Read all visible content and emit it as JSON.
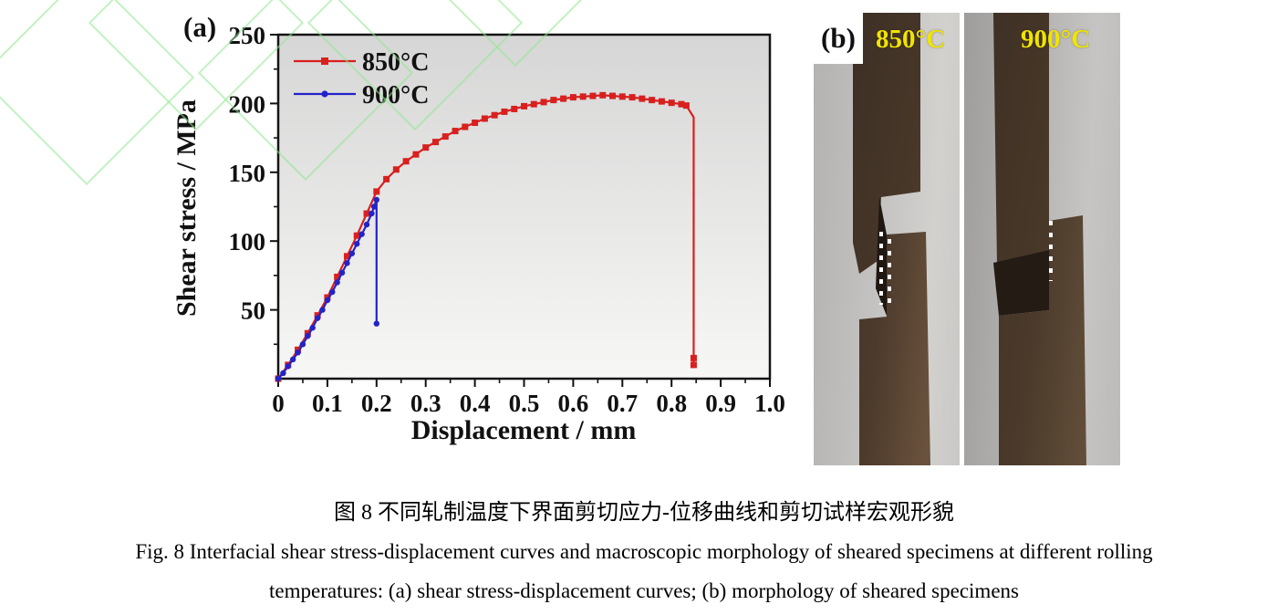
{
  "figure": {
    "panel_a_label": "(a)",
    "panel_b_label": "(b)"
  },
  "chart_data": {
    "type": "line",
    "title": "",
    "xlabel": "Displacement / mm",
    "ylabel": "Shear stress / MPa",
    "xlim": [
      0,
      1.0
    ],
    "ylim": [
      0,
      250
    ],
    "xtick_values": [
      0,
      0.1,
      0.2,
      0.3,
      0.4,
      0.5,
      0.6,
      0.7,
      0.8,
      0.9,
      1.0
    ],
    "xtick_labels": [
      "0",
      "0.1",
      "0.2",
      "0.3",
      "0.4",
      "0.5",
      "0.6",
      "0.7",
      "0.8",
      "0.9",
      "1.0"
    ],
    "ytick_values": [
      50,
      100,
      150,
      200,
      250
    ],
    "ytick_labels": [
      "50",
      "100",
      "150",
      "200",
      "250"
    ],
    "x_minor_step": 0.05,
    "y_minor_step": 25,
    "grid": false,
    "legend_position": "top-left",
    "series": [
      {
        "name": "850°C",
        "color": "#d8201e",
        "marker": "square",
        "points": [
          [
            0.0,
            0
          ],
          [
            0.02,
            10
          ],
          [
            0.04,
            21
          ],
          [
            0.06,
            33
          ],
          [
            0.08,
            46
          ],
          [
            0.1,
            59
          ],
          [
            0.12,
            74
          ],
          [
            0.14,
            89
          ],
          [
            0.16,
            104
          ],
          [
            0.18,
            120
          ],
          [
            0.2,
            136
          ],
          [
            0.22,
            145
          ],
          [
            0.24,
            152
          ],
          [
            0.26,
            158
          ],
          [
            0.28,
            163
          ],
          [
            0.3,
            168
          ],
          [
            0.32,
            172
          ],
          [
            0.34,
            176
          ],
          [
            0.36,
            180
          ],
          [
            0.38,
            183
          ],
          [
            0.4,
            186
          ],
          [
            0.42,
            189
          ],
          [
            0.44,
            191.5
          ],
          [
            0.46,
            194
          ],
          [
            0.48,
            196
          ],
          [
            0.5,
            198
          ],
          [
            0.52,
            199.5
          ],
          [
            0.54,
            201
          ],
          [
            0.56,
            202.5
          ],
          [
            0.58,
            203.5
          ],
          [
            0.6,
            204.5
          ],
          [
            0.62,
            205
          ],
          [
            0.64,
            205.5
          ],
          [
            0.66,
            206
          ],
          [
            0.68,
            205.5
          ],
          [
            0.7,
            205
          ],
          [
            0.72,
            204.5
          ],
          [
            0.74,
            203.5
          ],
          [
            0.76,
            202.5
          ],
          [
            0.78,
            201.5
          ],
          [
            0.8,
            200.5
          ],
          [
            0.82,
            199.5
          ],
          [
            0.83,
            198.5
          ],
          [
            0.845,
            190,
            0
          ],
          [
            0.845,
            15
          ],
          [
            0.845,
            10
          ]
        ]
      },
      {
        "name": "900°C",
        "color": "#2323c8",
        "marker": "circle",
        "points": [
          [
            0.0,
            0
          ],
          [
            0.01,
            4
          ],
          [
            0.02,
            9
          ],
          [
            0.03,
            14
          ],
          [
            0.04,
            19
          ],
          [
            0.05,
            25
          ],
          [
            0.06,
            31
          ],
          [
            0.07,
            37
          ],
          [
            0.08,
            44
          ],
          [
            0.09,
            50
          ],
          [
            0.1,
            57
          ],
          [
            0.11,
            63
          ],
          [
            0.12,
            70
          ],
          [
            0.13,
            77
          ],
          [
            0.14,
            84
          ],
          [
            0.15,
            91
          ],
          [
            0.16,
            98
          ],
          [
            0.17,
            105
          ],
          [
            0.18,
            112
          ],
          [
            0.19,
            120
          ],
          [
            0.195,
            125
          ],
          [
            0.2,
            130
          ],
          [
            0.2,
            40
          ]
        ]
      }
    ]
  },
  "photos": {
    "left_label": "850°C",
    "right_label": "900°C",
    "label_color": "#f0e400"
  },
  "caption": {
    "zh": "图 8 不同轧制温度下界面剪切应力-位移曲线和剪切试样宏观形貌",
    "en_line1": "Fig. 8 Interfacial shear stress-displacement curves and macroscopic morphology of sheared specimens at different rolling",
    "en_line2": "temperatures: (a) shear stress-displacement curves; (b) morphology of sheared specimens"
  },
  "colors": {
    "series_850": "#d8201e",
    "series_900": "#2323c8",
    "watermark_green": "#8fe88f",
    "photo_label_yellow": "#f0e400"
  }
}
